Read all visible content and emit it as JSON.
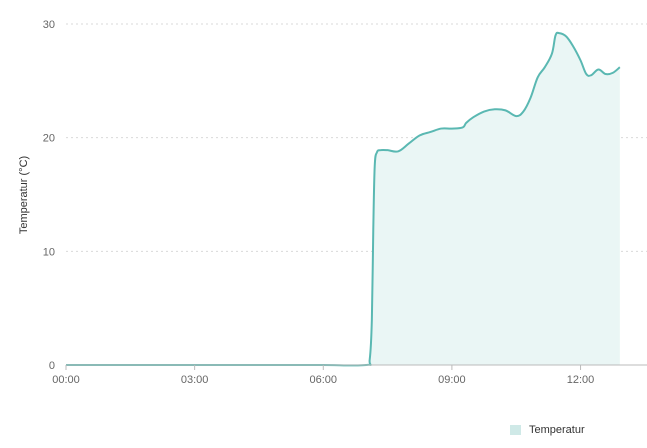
{
  "chart_data": {
    "type": "area",
    "title": "",
    "xlabel": "",
    "ylabel": "Temperatur (°C)",
    "xlim": [
      "00:00",
      "13:33"
    ],
    "ylim": [
      0,
      30
    ],
    "x_ticks": [
      "00:00",
      "03:00",
      "06:00",
      "09:00",
      "12:00"
    ],
    "y_ticks": [
      0,
      10,
      20,
      30
    ],
    "grid": "horizontal dotted",
    "legend_position": "bottom-right",
    "series_color": "#5ab8b2",
    "fill_color": "#eaf6f5",
    "series": [
      {
        "name": "Temperatur",
        "x": [
          "00:00",
          "01:00",
          "02:00",
          "03:00",
          "04:00",
          "05:00",
          "06:00",
          "07:00",
          "07:05",
          "07:08",
          "07:10",
          "07:12",
          "07:15",
          "07:20",
          "07:30",
          "07:45",
          "08:00",
          "08:15",
          "08:30",
          "08:45",
          "09:00",
          "09:15",
          "09:20",
          "09:30",
          "09:45",
          "10:00",
          "10:15",
          "10:30",
          "10:40",
          "10:50",
          "11:00",
          "11:10",
          "11:20",
          "11:25",
          "11:30",
          "11:40",
          "11:50",
          "12:00",
          "12:08",
          "12:15",
          "12:25",
          "12:35",
          "12:45",
          "12:55"
        ],
        "values": [
          0,
          0,
          0,
          0,
          0,
          0,
          0,
          0,
          0.5,
          4,
          12,
          17.5,
          18.7,
          18.9,
          18.9,
          18.8,
          19.5,
          20.2,
          20.5,
          20.8,
          20.8,
          20.9,
          21.3,
          21.8,
          22.3,
          22.5,
          22.4,
          21.9,
          22.3,
          23.5,
          25.3,
          26.2,
          27.4,
          29.0,
          29.2,
          28.9,
          28.0,
          26.8,
          25.6,
          25.5,
          26.0,
          25.6,
          25.7,
          26.2
        ]
      }
    ]
  }
}
